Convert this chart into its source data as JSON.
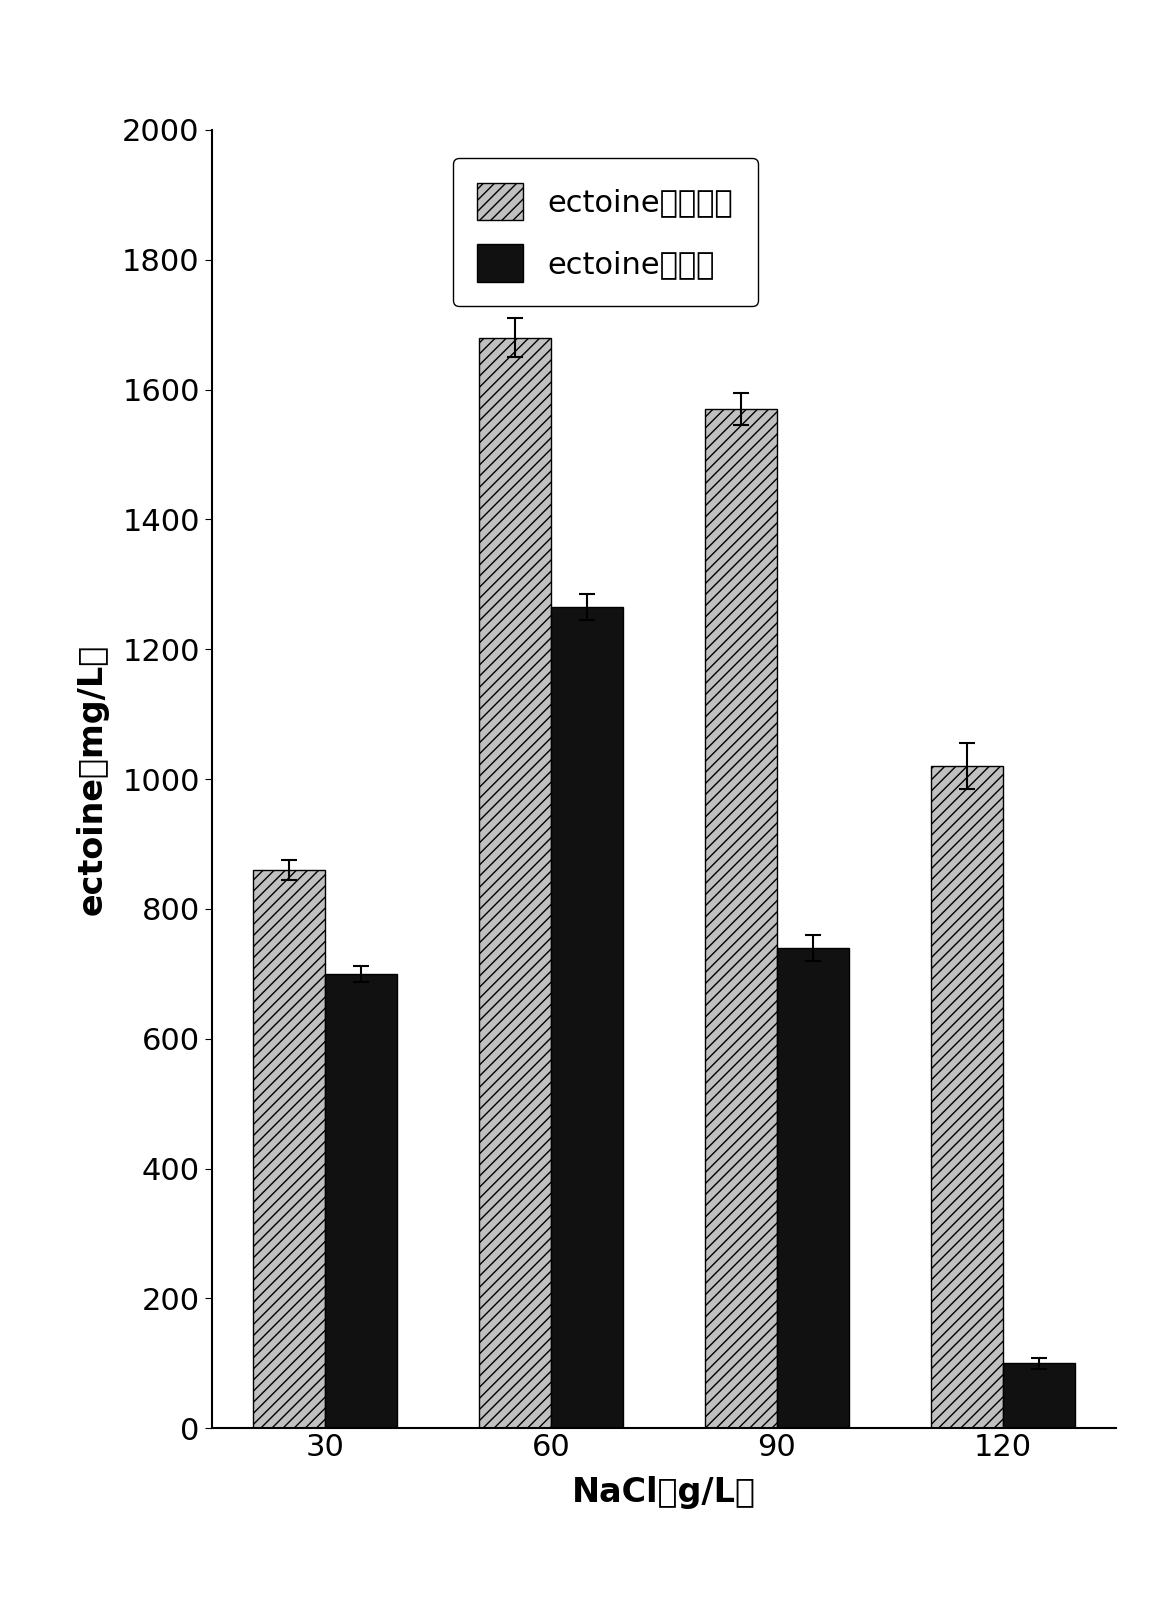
{
  "categories": [
    "30",
    "60",
    "90",
    "120"
  ],
  "xlabel": "NaCl（g/L）",
  "ylabel": "ectoine（mg/L）",
  "ylim": [
    0,
    2000
  ],
  "yticks": [
    0,
    200,
    400,
    600,
    800,
    1000,
    1200,
    1400,
    1600,
    1800,
    2000
  ],
  "total_values": [
    860,
    1680,
    1570,
    1020
  ],
  "total_errors": [
    15,
    30,
    25,
    35
  ],
  "secreted_values": [
    700,
    1265,
    740,
    100
  ],
  "secreted_errors": [
    12,
    20,
    20,
    8
  ],
  "bar_width": 0.32,
  "total_color": "#c0c0c0",
  "secreted_color": "#111111",
  "hatch_pattern": "///",
  "legend_label_total": "ectoine总合成量",
  "legend_label_secreted": "ectoine分泌量",
  "background_color": "#ffffff",
  "font_size_ticks": 22,
  "font_size_labels": 24,
  "font_size_legend": 22
}
